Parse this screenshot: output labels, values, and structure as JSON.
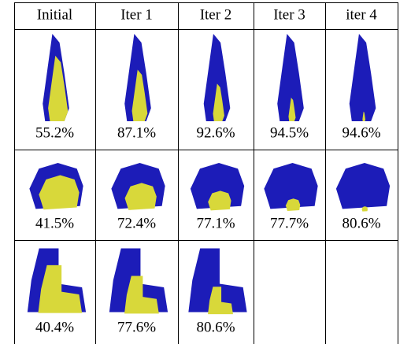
{
  "table": {
    "header": [
      "Initial",
      "Iter 1",
      "Iter 2",
      "Iter 3",
      "iter 4"
    ],
    "rows": [
      [
        "55.2%",
        "87.1%",
        "92.6%",
        "94.5%",
        "94.6%"
      ],
      [
        "41.5%",
        "72.4%",
        "77.1%",
        "77.7%",
        "80.6%"
      ],
      [
        "40.4%",
        "77.6%",
        "80.6%"
      ]
    ]
  }
}
